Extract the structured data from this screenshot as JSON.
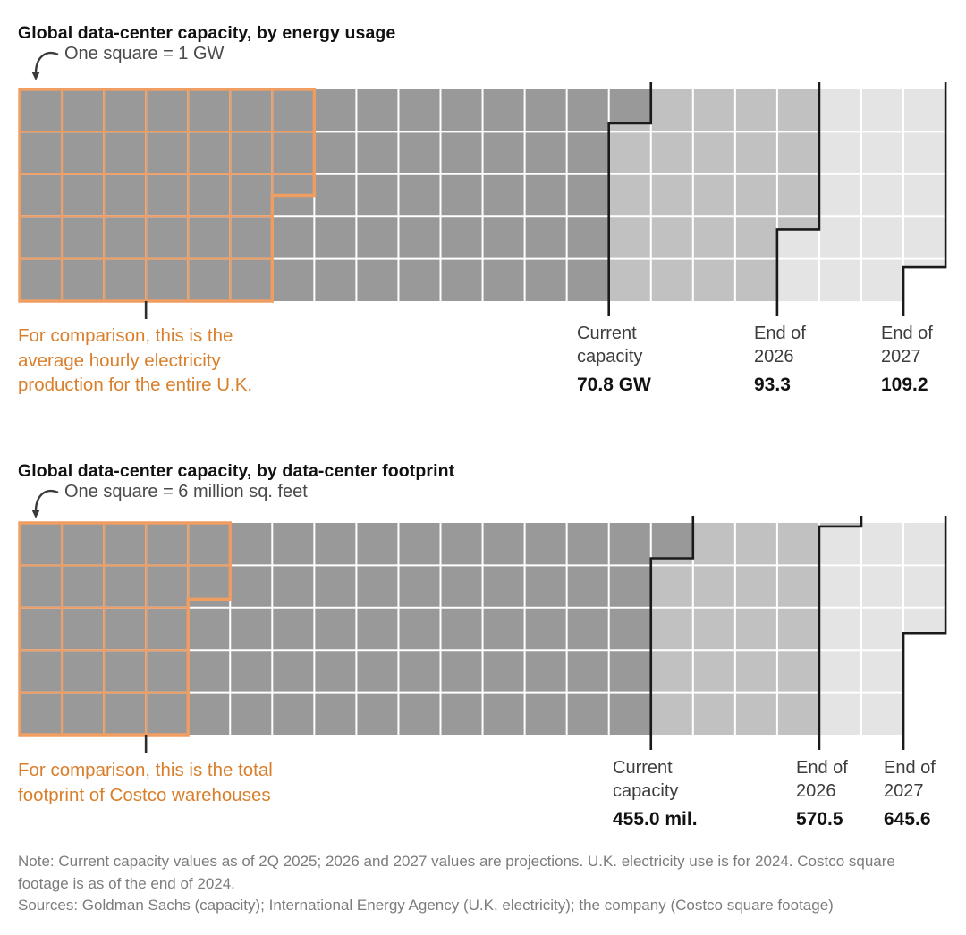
{
  "chart_data": [
    {
      "type": "waffle",
      "title": "Global data-center capacity, by energy usage",
      "legend": "One square = 1 GW",
      "unit_per_square": 1,
      "unit": "GW",
      "rows": 5,
      "cols": 22,
      "series": [
        {
          "name": "Current capacity",
          "value": 70.8,
          "value_label": "70.8 GW",
          "color": "#999999"
        },
        {
          "name": "End of 2026",
          "value": 93.3,
          "value_label": "93.3",
          "color": "#c1c1c1"
        },
        {
          "name": "End of 2027",
          "value": 109.2,
          "value_label": "109.2",
          "color": "#e4e4e4"
        }
      ],
      "comparison": {
        "text": "For comparison, this is the average hourly electricity production for the entire U.K.",
        "squares": 32.5,
        "outline_color": "#f09d62",
        "text_color": "#d97f2b"
      }
    },
    {
      "type": "waffle",
      "title": "Global data-center capacity, by data-center footprint",
      "legend": "One square = 6 million sq. feet",
      "unit_per_square": 6,
      "unit": "million sq. feet",
      "rows": 5,
      "cols": 22,
      "series": [
        {
          "name": "Current capacity",
          "value": 455.0,
          "value_label": "455.0 mil.",
          "color": "#999999"
        },
        {
          "name": "End of 2026",
          "value": 570.5,
          "value_label": "570.5",
          "color": "#c1c1c1"
        },
        {
          "name": "End of 2027",
          "value": 645.6,
          "value_label": "645.6",
          "color": "#e4e4e4"
        }
      ],
      "comparison": {
        "text": "For comparison, this is the total footprint of Costco warehouses",
        "squares": 21.8,
        "outline_color": "#f09d62",
        "text_color": "#d97f2b"
      }
    }
  ],
  "note": "Note: Current capacity values as of 2Q 2025; 2026 and 2027 values are projections. U.K. electricity use is for 2024. Costco square footage is as of the end of 2024.",
  "sources": "Sources: Goldman Sachs (capacity); International Energy Agency (U.K. electricity); the company (Costco square footage)"
}
